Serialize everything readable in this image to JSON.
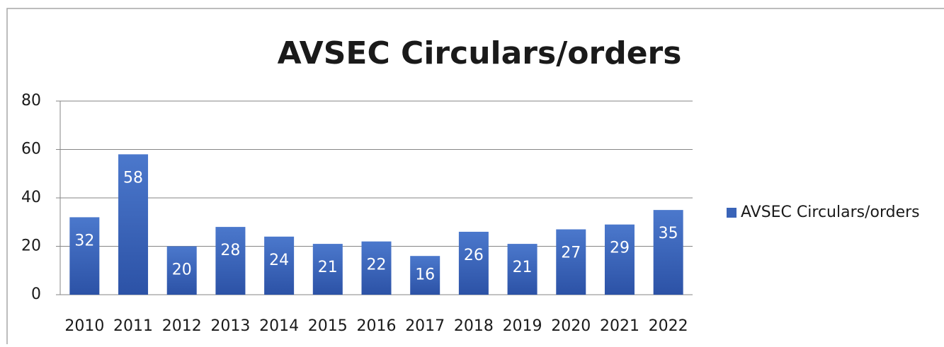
{
  "chart_data": {
    "type": "bar",
    "title": "AVSEC Circulars/orders",
    "categories": [
      "2010",
      "2011",
      "2012",
      "2013",
      "2014",
      "2015",
      "2016",
      "2017",
      "2018",
      "2019",
      "2020",
      "2021",
      "2022"
    ],
    "series": [
      {
        "name": "AVSEC Circulars/orders",
        "color": "#3a64b8",
        "values": [
          32,
          58,
          20,
          28,
          24,
          21,
          22,
          16,
          26,
          21,
          27,
          29,
          35
        ]
      }
    ],
    "ylim": [
      0,
      80
    ],
    "yticks": [
      0,
      20,
      40,
      60,
      80
    ],
    "grid": true,
    "legend": "right"
  }
}
